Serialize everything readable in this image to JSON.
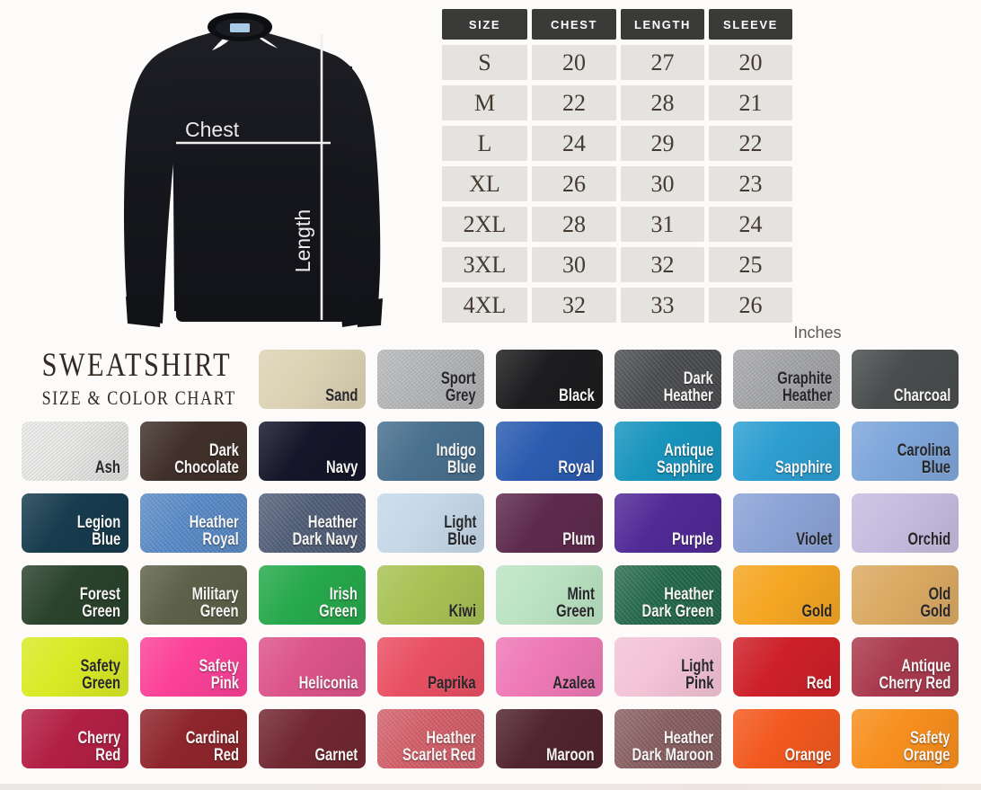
{
  "title": {
    "line1": "SWEATSHIRT",
    "line2": "SIZE & COLOR CHART"
  },
  "diagram": {
    "chest_label": "Chest",
    "length_label": "Length",
    "shirt_color": "#17181d",
    "tag_color": "#a9cbe5",
    "line_color": "#f0efed"
  },
  "size_table": {
    "headers": [
      "SIZE",
      "CHEST",
      "LENGTH",
      "SLEEVE"
    ],
    "rows": [
      [
        "S",
        "20",
        "27",
        "20"
      ],
      [
        "M",
        "22",
        "28",
        "21"
      ],
      [
        "L",
        "24",
        "29",
        "22"
      ],
      [
        "XL",
        "26",
        "30",
        "23"
      ],
      [
        "2XL",
        "28",
        "31",
        "24"
      ],
      [
        "3XL",
        "30",
        "32",
        "25"
      ],
      [
        "4XL",
        "32",
        "33",
        "26"
      ]
    ],
    "unit_label": "Inches",
    "header_bg": "#3a3a38",
    "cell_bg": "#e4e3df"
  },
  "colors": [
    {
      "name": "Sand",
      "lines": [
        "Sand"
      ],
      "bg": "#dcd2b4",
      "text": "dark",
      "heather": false
    },
    {
      "name": "Sport Grey",
      "lines": [
        "Sport",
        "Grey"
      ],
      "bg": "#b6b8ba",
      "text": "dark",
      "heather": true
    },
    {
      "name": "Black",
      "lines": [
        "Black"
      ],
      "bg": "#1d1d1f",
      "text": "light",
      "heather": false
    },
    {
      "name": "Dark Heather",
      "lines": [
        "Dark",
        "Heather"
      ],
      "bg": "#4b4d50",
      "text": "light",
      "heather": true
    },
    {
      "name": "Graphite Heather",
      "lines": [
        "Graphite",
        "Heather"
      ],
      "bg": "#a6a7a9",
      "text": "dark",
      "heather": true
    },
    {
      "name": "Charcoal",
      "lines": [
        "Charcoal"
      ],
      "bg": "#4a4d4e",
      "text": "light",
      "heather": false
    },
    {
      "name": "Ash",
      "lines": [
        "Ash"
      ],
      "bg": "#e9eae8",
      "text": "dark",
      "heather": true
    },
    {
      "name": "Dark Chocolate",
      "lines": [
        "Dark",
        "Chocolate"
      ],
      "bg": "#40302a",
      "text": "light",
      "heather": false
    },
    {
      "name": "Navy",
      "lines": [
        "Navy"
      ],
      "bg": "#151629",
      "text": "light",
      "heather": false
    },
    {
      "name": "Indigo Blue",
      "lines": [
        "Indigo",
        "Blue"
      ],
      "bg": "#49708e",
      "text": "light",
      "heather": false
    },
    {
      "name": "Royal",
      "lines": [
        "Royal"
      ],
      "bg": "#2c5cb0",
      "text": "light",
      "heather": false
    },
    {
      "name": "Antique Sapphire",
      "lines": [
        "Antique",
        "Sapphire"
      ],
      "bg": "#1894bd",
      "text": "light",
      "heather": false
    },
    {
      "name": "Sapphire",
      "lines": [
        "Sapphire"
      ],
      "bg": "#2d9ed1",
      "text": "light",
      "heather": false
    },
    {
      "name": "Carolina Blue",
      "lines": [
        "Carolina",
        "Blue"
      ],
      "bg": "#7ea6da",
      "text": "dark",
      "heather": false
    },
    {
      "name": "Legion Blue",
      "lines": [
        "Legion",
        "Blue"
      ],
      "bg": "#173c4e",
      "text": "light",
      "heather": false
    },
    {
      "name": "Heather Royal",
      "lines": [
        "Heather",
        "Royal"
      ],
      "bg": "#5a8cc9",
      "text": "light",
      "heather": true
    },
    {
      "name": "Heather Dark Navy",
      "lines": [
        "Heather",
        "Dark Navy"
      ],
      "bg": "#525f79",
      "text": "light",
      "heather": true
    },
    {
      "name": "Light Blue",
      "lines": [
        "Light",
        "Blue"
      ],
      "bg": "#c5d8e8",
      "text": "dark",
      "heather": false
    },
    {
      "name": "Plum",
      "lines": [
        "Plum"
      ],
      "bg": "#5e2b4e",
      "text": "light",
      "heather": false
    },
    {
      "name": "Purple",
      "lines": [
        "Purple"
      ],
      "bg": "#512a96",
      "text": "light",
      "heather": false
    },
    {
      "name": "Violet",
      "lines": [
        "Violet"
      ],
      "bg": "#8ca3d6",
      "text": "dark",
      "heather": false
    },
    {
      "name": "Orchid",
      "lines": [
        "Orchid"
      ],
      "bg": "#c6bcdf",
      "text": "dark",
      "heather": false
    },
    {
      "name": "Forest Green",
      "lines": [
        "Forest",
        "Green"
      ],
      "bg": "#2a422c",
      "text": "light",
      "heather": false
    },
    {
      "name": "Military Green",
      "lines": [
        "Military",
        "Green"
      ],
      "bg": "#5e6149",
      "text": "light",
      "heather": false
    },
    {
      "name": "Irish Green",
      "lines": [
        "Irish",
        "Green"
      ],
      "bg": "#27a94c",
      "text": "light",
      "heather": false
    },
    {
      "name": "Kiwi",
      "lines": [
        "Kiwi"
      ],
      "bg": "#a8c255",
      "text": "dark",
      "heather": false
    },
    {
      "name": "Mint Green",
      "lines": [
        "Mint",
        "Green"
      ],
      "bg": "#bbe3c3",
      "text": "dark",
      "heather": false
    },
    {
      "name": "Heather Dark Green",
      "lines": [
        "Heather",
        "Dark Green"
      ],
      "bg": "#256a4b",
      "text": "light",
      "heather": true
    },
    {
      "name": "Gold",
      "lines": [
        "Gold"
      ],
      "bg": "#f5a623",
      "text": "dark",
      "heather": false
    },
    {
      "name": "Old Gold",
      "lines": [
        "Old",
        "Gold"
      ],
      "bg": "#dbaa63",
      "text": "dark",
      "heather": false
    },
    {
      "name": "Safety Green",
      "lines": [
        "Safety",
        "Green"
      ],
      "bg": "#d9ea25",
      "text": "dark",
      "heather": false
    },
    {
      "name": "Safety Pink",
      "lines": [
        "Safety",
        "Pink"
      ],
      "bg": "#fb4198",
      "text": "light",
      "heather": false
    },
    {
      "name": "Heliconia",
      "lines": [
        "Heliconia"
      ],
      "bg": "#dc548a",
      "text": "light",
      "heather": false
    },
    {
      "name": "Paprika",
      "lines": [
        "Paprika"
      ],
      "bg": "#e94f63",
      "text": "dark",
      "heather": false
    },
    {
      "name": "Azalea",
      "lines": [
        "Azalea"
      ],
      "bg": "#ee79b6",
      "text": "dark",
      "heather": false
    },
    {
      "name": "Light Pink",
      "lines": [
        "Light",
        "Pink"
      ],
      "bg": "#f3c3d6",
      "text": "dark",
      "heather": false
    },
    {
      "name": "Red",
      "lines": [
        "Red"
      ],
      "bg": "#cd2029",
      "text": "light",
      "heather": false
    },
    {
      "name": "Antique Cherry Red",
      "lines": [
        "Antique",
        "Cherry Red"
      ],
      "bg": "#a93a4e",
      "text": "light",
      "heather": false
    },
    {
      "name": "Cherry Red",
      "lines": [
        "Cherry",
        "Red"
      ],
      "bg": "#b22044",
      "text": "light",
      "heather": false
    },
    {
      "name": "Cardinal Red",
      "lines": [
        "Cardinal",
        "Red"
      ],
      "bg": "#8e262c",
      "text": "light",
      "heather": false
    },
    {
      "name": "Garnet",
      "lines": [
        "Garnet"
      ],
      "bg": "#722832",
      "text": "light",
      "heather": false
    },
    {
      "name": "Heather Scarlet Red",
      "lines": [
        "Heather",
        "Scarlet Red"
      ],
      "bg": "#d5606a",
      "text": "light",
      "heather": true
    },
    {
      "name": "Maroon",
      "lines": [
        "Maroon"
      ],
      "bg": "#512431",
      "text": "light",
      "heather": false
    },
    {
      "name": "Heather Dark Maroon",
      "lines": [
        "Heather",
        "Dark Maroon"
      ],
      "bg": "#8a6062",
      "text": "light",
      "heather": true
    },
    {
      "name": "Orange",
      "lines": [
        "Orange"
      ],
      "bg": "#f2591f",
      "text": "light",
      "heather": false
    },
    {
      "name": "Safety Orange",
      "lines": [
        "Safety",
        "Orange"
      ],
      "bg": "#f78f1e",
      "text": "light",
      "heather": false
    }
  ],
  "chart_data": {
    "type": "table",
    "title": "SWEATSHIRT SIZE & COLOR CHART",
    "columns": [
      "SIZE",
      "CHEST",
      "LENGTH",
      "SLEEVE"
    ],
    "rows": [
      [
        "S",
        20,
        27,
        20
      ],
      [
        "M",
        22,
        28,
        21
      ],
      [
        "L",
        24,
        29,
        22
      ],
      [
        "XL",
        26,
        30,
        23
      ],
      [
        "2XL",
        28,
        31,
        24
      ],
      [
        "3XL",
        30,
        32,
        25
      ],
      [
        "4XL",
        32,
        33,
        26
      ]
    ],
    "units": "Inches",
    "color_names": [
      "Sand",
      "Sport Grey",
      "Black",
      "Dark Heather",
      "Graphite Heather",
      "Charcoal",
      "Ash",
      "Dark Chocolate",
      "Navy",
      "Indigo Blue",
      "Royal",
      "Antique Sapphire",
      "Sapphire",
      "Carolina Blue",
      "Legion Blue",
      "Heather Royal",
      "Heather Dark Navy",
      "Light Blue",
      "Plum",
      "Purple",
      "Violet",
      "Orchid",
      "Forest Green",
      "Military Green",
      "Irish Green",
      "Kiwi",
      "Mint Green",
      "Heather Dark Green",
      "Gold",
      "Old Gold",
      "Safety Green",
      "Safety Pink",
      "Heliconia",
      "Paprika",
      "Azalea",
      "Light Pink",
      "Red",
      "Antique Cherry Red",
      "Cherry Red",
      "Cardinal Red",
      "Garnet",
      "Heather Scarlet Red",
      "Maroon",
      "Heather Dark Maroon",
      "Orange",
      "Safety Orange"
    ]
  }
}
